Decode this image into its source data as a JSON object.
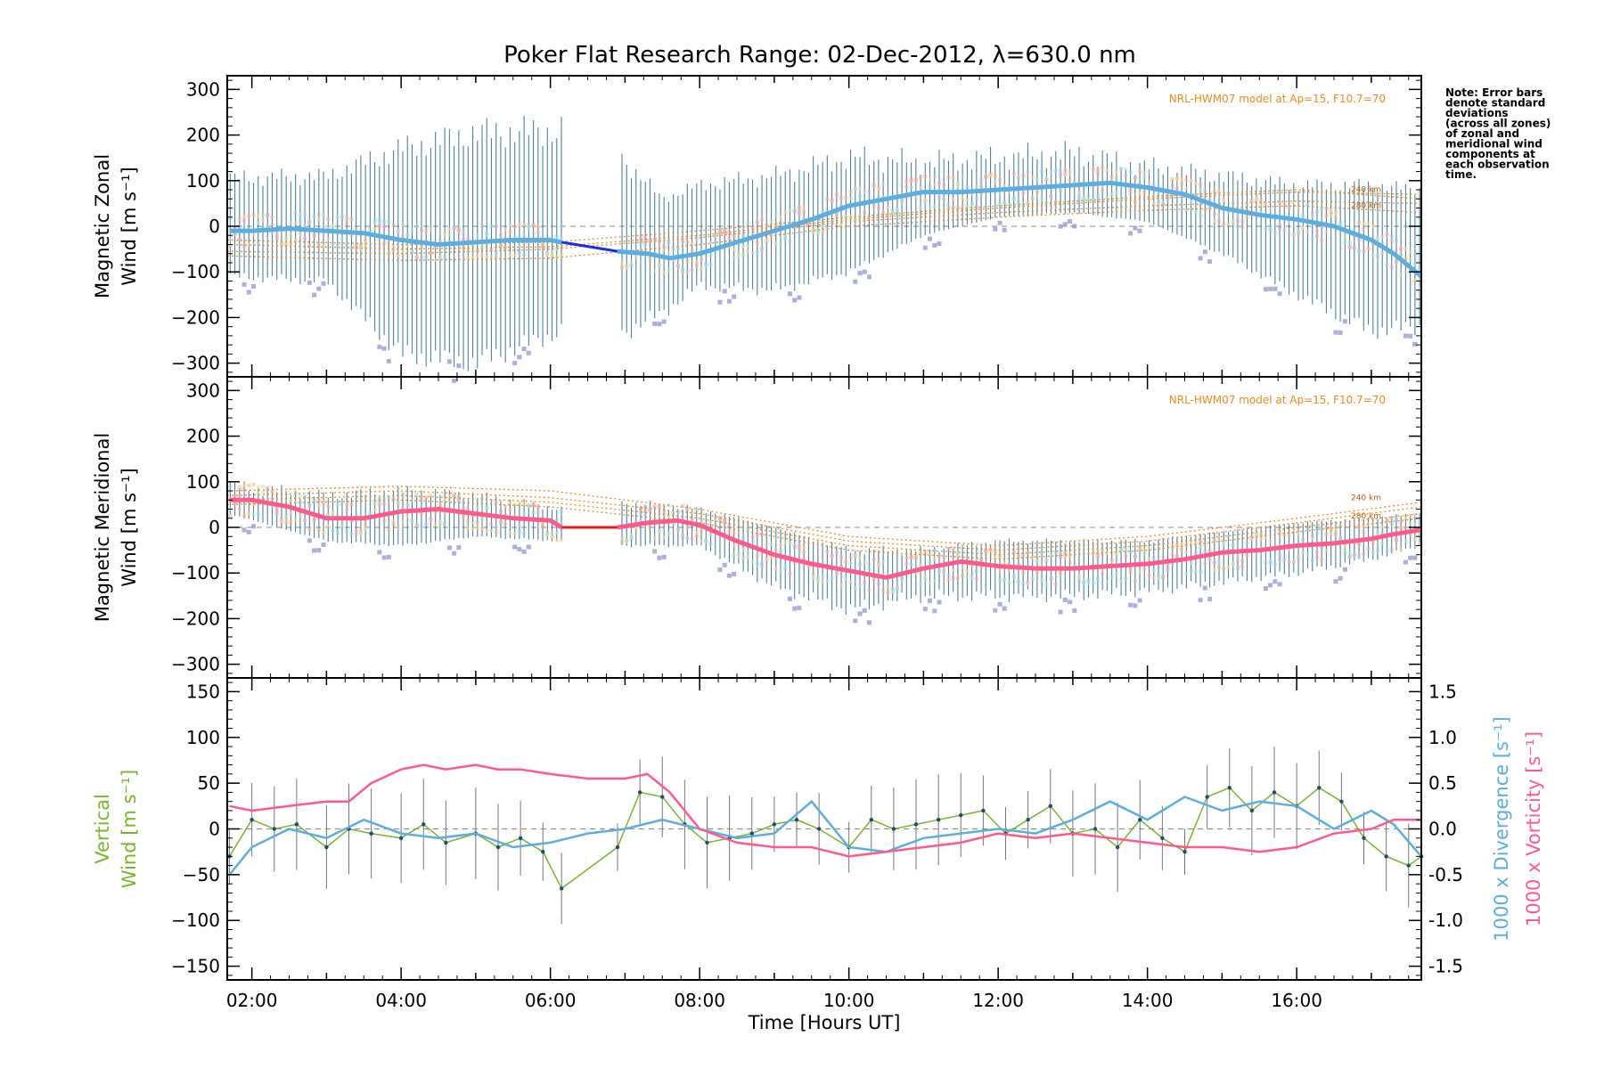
{
  "title": "Poker Flat Research Range: 02-Dec-2012, λ=630.0 nm",
  "note": [
    "Note: Error bars",
    "denote standard",
    "deviations",
    "(across all zones)",
    "of zonal and",
    "meridional wind",
    "components at",
    "each observation",
    "time."
  ],
  "colors": {
    "zonal": "#5aaee0",
    "zonal_gap": "#1a2fe0",
    "meridional": "#ff5a8c",
    "meridional_gap": "#e81a1a",
    "vertical": "#76b82a",
    "divergence": "#5aaee0",
    "vorticity": "#ff5a8c",
    "model": "#f08a1c",
    "errorbar": "#2f6c8e",
    "scatter": "#9a9ad6"
  },
  "chart_data": [
    {
      "type": "line",
      "name": "panel-zonal",
      "ylabel": [
        "Magnetic Zonal",
        "Wind [m s⁻¹]"
      ],
      "ylim": [
        -330,
        330
      ],
      "yticks": [
        300,
        200,
        100,
        0,
        -100,
        -200,
        -300
      ],
      "xlim": [
        1.67,
        17.67
      ],
      "model_label": "NRL-HWM07 model at Ap=15, F10.7=70",
      "model_alt_labels": [
        "240 km",
        "280 km"
      ],
      "series": [
        {
          "x": [
            1.7,
            2.0,
            2.5,
            3.0,
            3.5,
            4.0,
            4.5,
            5.0,
            5.5,
            6.0,
            6.15,
            6.9,
            7.3,
            7.6,
            8.0,
            8.5,
            9.0,
            9.5,
            10.0,
            10.5,
            11.0,
            11.5,
            12.0,
            12.5,
            13.0,
            13.5,
            14.0,
            14.5,
            15.0,
            15.5,
            16.0,
            16.5,
            17.0,
            17.3,
            17.67
          ],
          "y": [
            -10,
            -10,
            -5,
            -10,
            -15,
            -30,
            -40,
            -35,
            -30,
            -30,
            -35,
            -55,
            -60,
            -70,
            -60,
            -35,
            -10,
            15,
            45,
            60,
            75,
            75,
            80,
            85,
            90,
            95,
            85,
            70,
            40,
            25,
            15,
            0,
            -30,
            -60,
            -110
          ]
        }
      ],
      "gap": {
        "x": [
          6.15,
          6.9
        ],
        "y": [
          -35,
          -55
        ]
      },
      "error_envelope": {
        "x": [
          1.7,
          3.0,
          4.0,
          5.0,
          6.15,
          6.9,
          7.5,
          8.0,
          9.0,
          10.0,
          11.0,
          12.0,
          13.0,
          14.0,
          15.0,
          16.0,
          17.0,
          17.67
        ],
        "upper": [
          105,
          110,
          170,
          205,
          210,
          160,
          60,
          90,
          110,
          150,
          140,
          150,
          160,
          130,
          110,
          90,
          90,
          80
        ],
        "lower": [
          -110,
          -120,
          -280,
          -300,
          -230,
          -240,
          -190,
          -130,
          -140,
          -100,
          -20,
          20,
          30,
          10,
          -60,
          -150,
          -230,
          -220
        ]
      },
      "model": {
        "x": [
          1.67,
          4.0,
          6.0,
          8.0,
          10.0,
          12.0,
          14.0,
          16.0,
          17.67
        ],
        "curves": [
          [
            -40,
            -50,
            -45,
            -20,
            15,
            40,
            60,
            75,
            70
          ],
          [
            -30,
            -40,
            -35,
            -10,
            20,
            45,
            65,
            80,
            60
          ],
          [
            -55,
            -60,
            -50,
            -25,
            10,
            30,
            45,
            55,
            50
          ],
          [
            -65,
            -75,
            -70,
            -40,
            0,
            20,
            35,
            45,
            30
          ]
        ]
      }
    },
    {
      "type": "line",
      "name": "panel-meridional",
      "ylabel": [
        "Magnetic Meridional",
        "Wind [m s⁻¹]"
      ],
      "ylim": [
        -330,
        330
      ],
      "yticks": [
        300,
        200,
        100,
        0,
        -100,
        -200,
        -300
      ],
      "xlim": [
        1.67,
        17.67
      ],
      "model_label": "NRL-HWM07 model at Ap=15, F10.7=70",
      "model_alt_labels": [
        "240 km",
        "280 km"
      ],
      "series": [
        {
          "x": [
            1.7,
            2.0,
            2.5,
            3.0,
            3.5,
            4.0,
            4.5,
            5.0,
            5.5,
            6.0,
            6.15,
            6.9,
            7.3,
            7.7,
            8.0,
            8.5,
            9.0,
            9.5,
            10.0,
            10.5,
            11.0,
            11.5,
            12.0,
            12.5,
            13.0,
            13.5,
            14.0,
            14.5,
            15.0,
            15.5,
            16.0,
            16.5,
            17.0,
            17.3,
            17.67
          ],
          "y": [
            60,
            60,
            45,
            20,
            20,
            35,
            40,
            30,
            20,
            15,
            0,
            0,
            10,
            15,
            5,
            -30,
            -60,
            -80,
            -95,
            -110,
            -90,
            -75,
            -85,
            -90,
            -90,
            -85,
            -80,
            -70,
            -55,
            -50,
            -40,
            -35,
            -25,
            -15,
            -5
          ]
        }
      ],
      "gap": {
        "x": [
          6.15,
          6.9
        ],
        "y": [
          0,
          0
        ]
      },
      "error_envelope": {
        "x": [
          1.7,
          3.0,
          4.0,
          5.0,
          6.15,
          6.9,
          8.0,
          9.0,
          10.0,
          11.0,
          12.0,
          13.0,
          14.0,
          15.0,
          16.0,
          17.0,
          17.67
        ],
        "upper": [
          90,
          70,
          80,
          70,
          40,
          55,
          40,
          0,
          -50,
          -50,
          -30,
          -30,
          -30,
          -10,
          10,
          20,
          30
        ],
        "lower": [
          30,
          -30,
          -40,
          -20,
          -30,
          -40,
          -40,
          -130,
          -180,
          -150,
          -150,
          -150,
          -140,
          -120,
          -100,
          -70,
          -40
        ]
      },
      "model": {
        "x": [
          1.67,
          4.0,
          6.0,
          8.0,
          10.0,
          12.0,
          14.0,
          16.0,
          17.67
        ],
        "curves": [
          [
            80,
            90,
            80,
            40,
            -20,
            -40,
            -20,
            20,
            55
          ],
          [
            70,
            80,
            65,
            30,
            -30,
            -50,
            -30,
            10,
            45
          ],
          [
            60,
            70,
            55,
            20,
            -40,
            -60,
            -40,
            0,
            30
          ],
          [
            50,
            60,
            45,
            10,
            -50,
            -70,
            -50,
            -10,
            20
          ]
        ]
      }
    },
    {
      "type": "line",
      "name": "panel-vertical",
      "ylabel": [
        "Vertical",
        "Wind [m s⁻¹]"
      ],
      "ylabel_right_div": "1000 x Divergence [s⁻¹]",
      "ylabel_right_vort": "1000 x Vorticity [s⁻¹]",
      "ylim": [
        -165,
        165
      ],
      "yticks": [
        150,
        100,
        50,
        0,
        -50,
        -100,
        -150
      ],
      "y2lim": [
        -1.65,
        1.65
      ],
      "y2ticks": [
        "1.5",
        "1.0",
        "0.5",
        "0.0",
        "-0.5",
        "-1.0",
        "-1.5"
      ],
      "y2tick_values": [
        1.5,
        1.0,
        0.5,
        0.0,
        -0.5,
        -1.0,
        -1.5
      ],
      "xlim": [
        1.67,
        17.67
      ],
      "xlabel": "Time [Hours UT]",
      "xticks": [
        "02:00",
        "04:00",
        "06:00",
        "08:00",
        "10:00",
        "12:00",
        "14:00",
        "16:00"
      ],
      "xtick_values": [
        2,
        4,
        6,
        8,
        10,
        12,
        14,
        16
      ],
      "series": [
        {
          "name": "Vertical",
          "x": [
            1.7,
            2.0,
            2.3,
            2.6,
            3.0,
            3.3,
            3.6,
            4.0,
            4.3,
            4.6,
            5.0,
            5.3,
            5.6,
            5.9,
            6.15,
            6.9,
            7.2,
            7.5,
            7.8,
            8.1,
            8.4,
            8.7,
            9.0,
            9.3,
            9.6,
            10.0,
            10.3,
            10.6,
            10.9,
            11.2,
            11.5,
            11.8,
            12.1,
            12.4,
            12.7,
            13.0,
            13.3,
            13.6,
            13.9,
            14.2,
            14.5,
            14.8,
            15.1,
            15.4,
            15.7,
            16.0,
            16.3,
            16.6,
            16.9,
            17.2,
            17.5,
            17.67
          ],
          "y": [
            -30,
            10,
            0,
            5,
            -20,
            0,
            -5,
            -10,
            5,
            -15,
            -5,
            -20,
            -10,
            -25,
            -65,
            -20,
            40,
            35,
            5,
            -15,
            -10,
            -5,
            5,
            10,
            0,
            -20,
            10,
            0,
            5,
            10,
            15,
            20,
            -5,
            10,
            25,
            -5,
            0,
            -20,
            10,
            -10,
            -25,
            35,
            45,
            20,
            40,
            25,
            45,
            30,
            -10,
            -30,
            -40,
            -30
          ]
        },
        {
          "name": "Divergence",
          "axis": "right",
          "x": [
            1.7,
            2.0,
            2.5,
            3.0,
            3.5,
            4.0,
            4.5,
            5.0,
            5.5,
            6.0,
            6.5,
            7.0,
            7.5,
            8.0,
            8.5,
            9.0,
            9.5,
            10.0,
            10.5,
            11.0,
            11.5,
            12.0,
            12.5,
            13.0,
            13.5,
            14.0,
            14.5,
            15.0,
            15.5,
            16.0,
            16.5,
            17.0,
            17.3,
            17.67
          ],
          "y": [
            -0.5,
            -0.2,
            0.0,
            -0.1,
            0.1,
            -0.05,
            -0.1,
            -0.05,
            -0.2,
            -0.15,
            -0.05,
            0.0,
            0.1,
            0.0,
            -0.1,
            -0.05,
            0.3,
            -0.2,
            -0.25,
            -0.1,
            -0.05,
            0.0,
            -0.05,
            0.1,
            0.3,
            0.1,
            0.35,
            0.2,
            0.3,
            0.25,
            0.0,
            0.2,
            0.05,
            -0.3
          ]
        },
        {
          "name": "Vorticity",
          "axis": "right",
          "x": [
            1.7,
            2.0,
            2.5,
            3.0,
            3.3,
            3.6,
            4.0,
            4.3,
            4.6,
            5.0,
            5.3,
            5.6,
            6.0,
            6.5,
            7.0,
            7.3,
            7.6,
            8.0,
            8.5,
            9.0,
            9.5,
            10.0,
            10.5,
            11.0,
            11.5,
            12.0,
            12.5,
            13.0,
            13.5,
            14.0,
            14.5,
            15.0,
            15.5,
            16.0,
            16.5,
            17.0,
            17.3,
            17.67
          ],
          "y": [
            0.25,
            0.2,
            0.25,
            0.3,
            0.3,
            0.5,
            0.65,
            0.7,
            0.65,
            0.7,
            0.65,
            0.65,
            0.6,
            0.55,
            0.55,
            0.6,
            0.4,
            0.0,
            -0.15,
            -0.2,
            -0.2,
            -0.3,
            -0.25,
            -0.2,
            -0.15,
            -0.05,
            -0.1,
            -0.05,
            -0.1,
            -0.15,
            -0.2,
            -0.2,
            -0.25,
            -0.2,
            -0.05,
            0.0,
            0.1,
            0.1
          ]
        }
      ]
    }
  ]
}
